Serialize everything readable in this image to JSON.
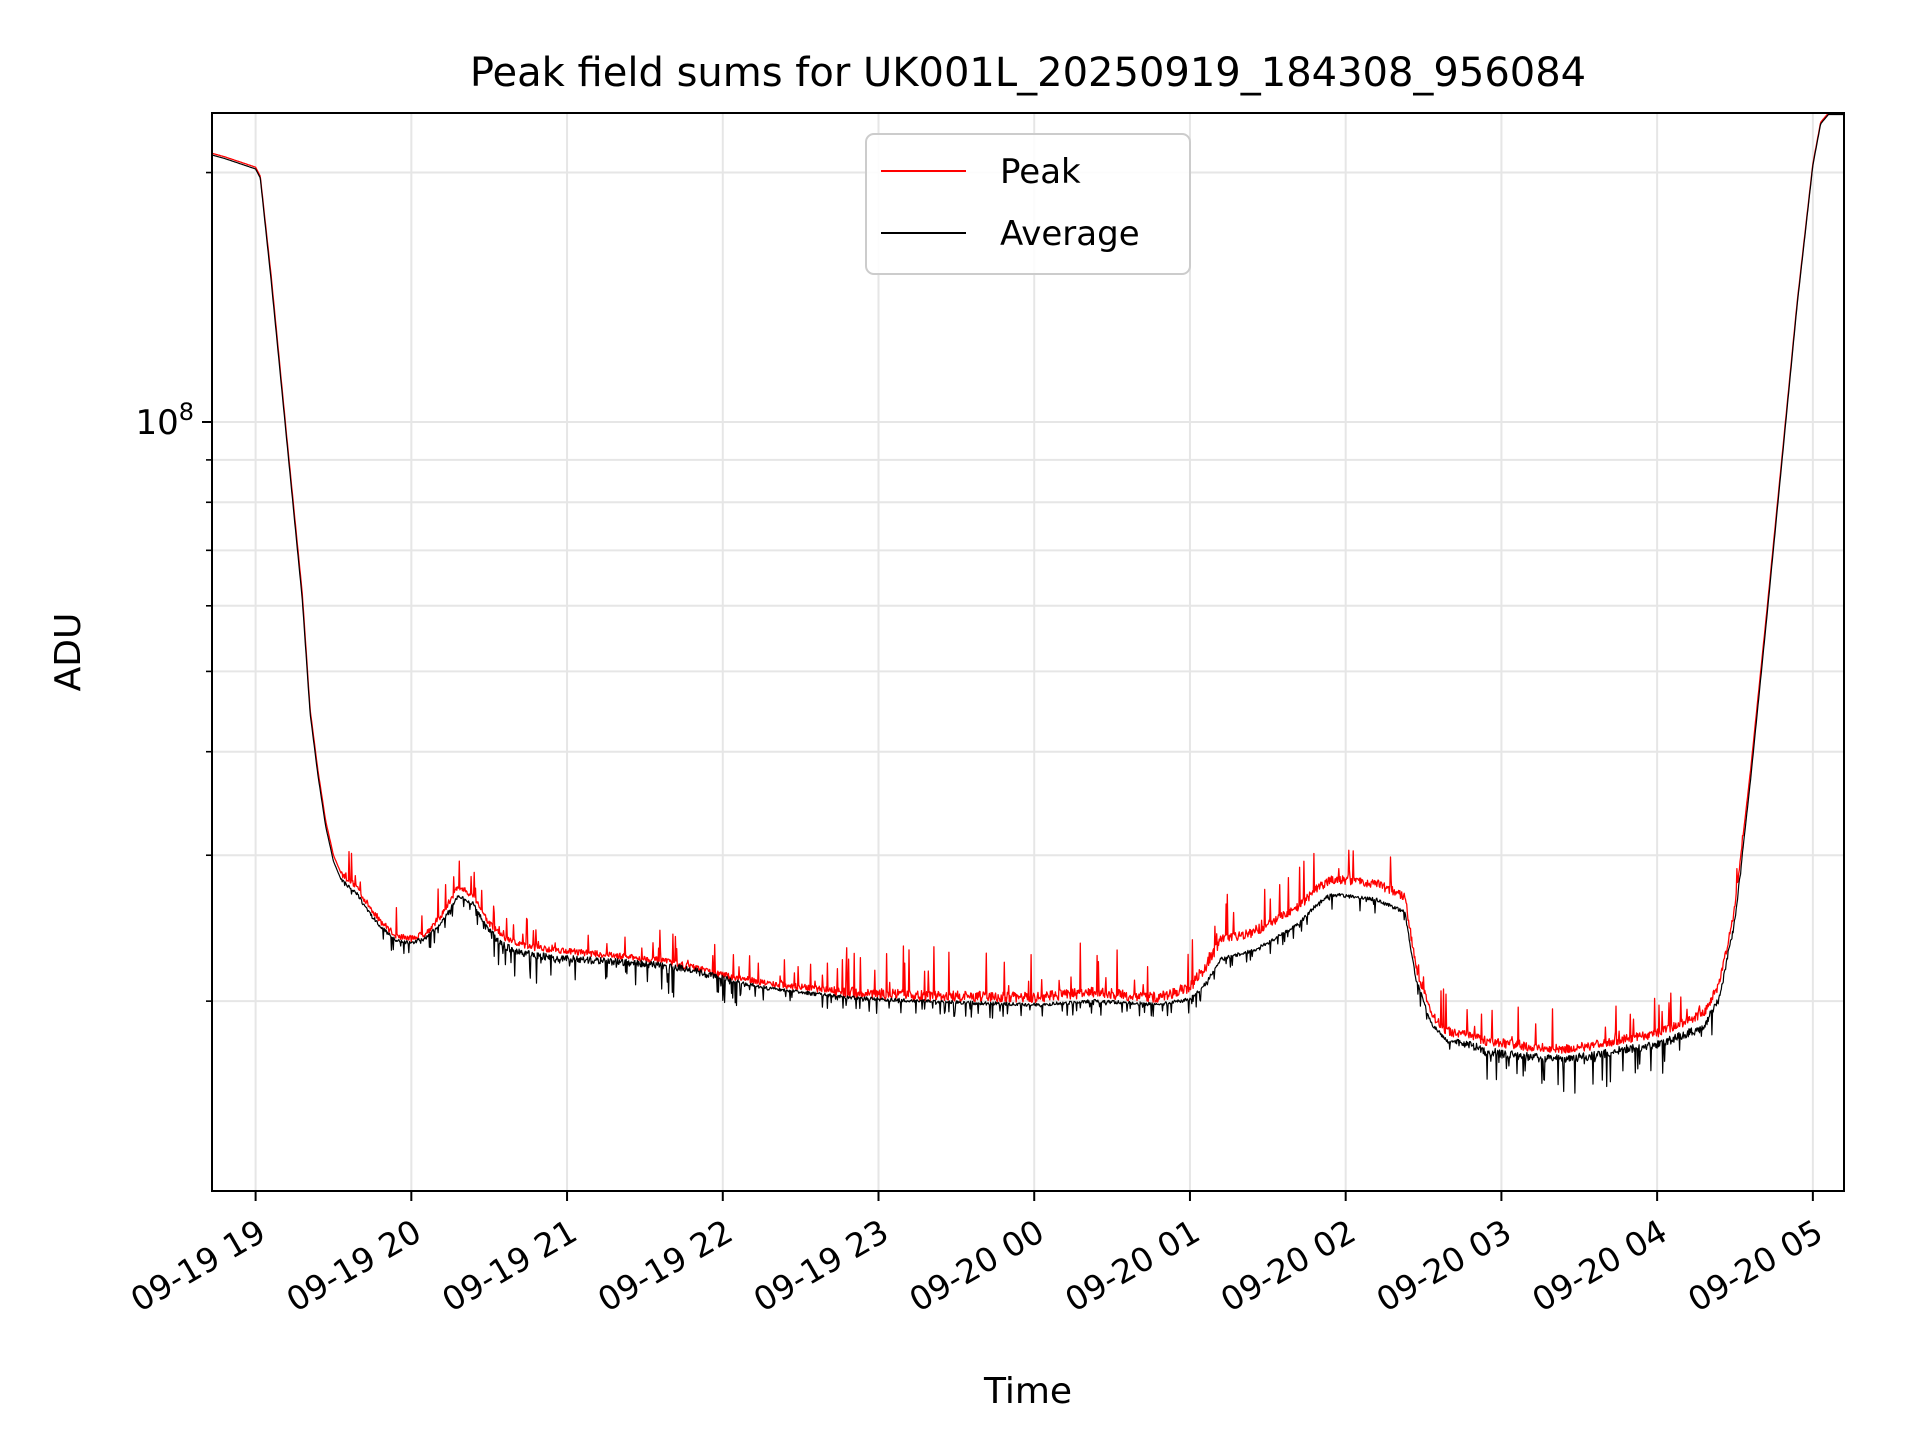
{
  "chart_data": {
    "type": "line",
    "title": "Peak field sums for UK001L_20250919_184308_956084",
    "xlabel": "Time",
    "ylabel": "ADU",
    "yscale": "log",
    "ylim": [
      11800000,
      236000000
    ],
    "xlim": [
      -0.28,
      10.2
    ],
    "x_unit": "hours after 2025-09-19 19:00",
    "grid": true,
    "grid_minor": true,
    "legend_position": "upper center",
    "xticks": [
      {
        "value": 0,
        "label": "09-19 19"
      },
      {
        "value": 1,
        "label": "09-19 20"
      },
      {
        "value": 2,
        "label": "09-19 21"
      },
      {
        "value": 3,
        "label": "09-19 22"
      },
      {
        "value": 4,
        "label": "09-19 23"
      },
      {
        "value": 5,
        "label": "09-20 00"
      },
      {
        "value": 6,
        "label": "09-20 01"
      },
      {
        "value": 7,
        "label": "09-20 02"
      },
      {
        "value": 8,
        "label": "09-20 03"
      },
      {
        "value": 9,
        "label": "09-20 04"
      },
      {
        "value": 10,
        "label": "09-20 05"
      }
    ],
    "yticks_major": [
      {
        "value": 100000000,
        "base": "10",
        "exp": "8"
      }
    ],
    "yticks_minor": [
      20000000,
      30000000,
      40000000,
      50000000,
      60000000,
      70000000,
      80000000,
      90000000,
      200000000
    ],
    "series": [
      {
        "name": "Peak",
        "color": "#ff0000",
        "x": [
          -0.28,
          -0.2,
          -0.1,
          0.0,
          0.03,
          0.1,
          0.2,
          0.3,
          0.35,
          0.4,
          0.45,
          0.5,
          0.55,
          0.6,
          0.65,
          0.7,
          0.8,
          0.9,
          1.0,
          1.1,
          1.2,
          1.3,
          1.4,
          1.45,
          1.5,
          1.6,
          1.7,
          1.8,
          2.0,
          2.3,
          2.6,
          2.8,
          3.0,
          3.3,
          3.6,
          3.8,
          4.0,
          4.3,
          4.6,
          5.0,
          5.2,
          5.4,
          5.6,
          5.8,
          6.0,
          6.1,
          6.2,
          6.4,
          6.5,
          6.7,
          6.8,
          6.9,
          7.0,
          7.2,
          7.38,
          7.45,
          7.55,
          7.65,
          7.8,
          7.9,
          8.0,
          8.2,
          8.4,
          8.6,
          8.8,
          9.0,
          9.1,
          9.2,
          9.3,
          9.4,
          9.5,
          9.6,
          9.7,
          9.8,
          9.9,
          10.0,
          10.05,
          10.1,
          10.2
        ],
        "y": [
          211000000,
          209000000,
          206000000,
          203000000,
          198000000,
          150000000,
          96000000,
          62000000,
          45000000,
          38000000,
          33000000,
          30000000,
          28500000,
          28000000,
          27500000,
          26500000,
          25000000,
          24000000,
          23800000,
          24200000,
          25500000,
          27500000,
          26800000,
          25800000,
          24800000,
          23800000,
          23400000,
          23200000,
          23000000,
          22700000,
          22400000,
          22000000,
          21500000,
          21000000,
          20700000,
          20500000,
          20400000,
          20300000,
          20250000,
          20200000,
          20400000,
          20500000,
          20300000,
          20200000,
          20800000,
          22000000,
          23700000,
          24200000,
          24700000,
          26000000,
          27200000,
          28000000,
          28000000,
          27700000,
          26800000,
          22000000,
          19300000,
          18400000,
          18200000,
          17900000,
          17800000,
          17600000,
          17500000,
          17700000,
          18000000,
          18300000,
          18600000,
          19000000,
          19300000,
          21000000,
          26000000,
          38000000,
          58000000,
          90000000,
          140000000,
          205000000,
          230000000,
          236000000,
          236000000
        ]
      },
      {
        "name": "Average",
        "color": "#000000",
        "x": [
          -0.28,
          -0.2,
          -0.1,
          0.0,
          0.03,
          0.1,
          0.2,
          0.3,
          0.35,
          0.4,
          0.45,
          0.5,
          0.55,
          0.6,
          0.65,
          0.7,
          0.8,
          0.9,
          1.0,
          1.1,
          1.2,
          1.3,
          1.4,
          1.45,
          1.5,
          1.6,
          1.7,
          1.8,
          2.0,
          2.3,
          2.6,
          2.8,
          3.0,
          3.3,
          3.6,
          3.8,
          4.0,
          4.3,
          4.6,
          5.0,
          5.2,
          5.4,
          5.6,
          5.8,
          6.0,
          6.1,
          6.2,
          6.4,
          6.5,
          6.7,
          6.8,
          6.9,
          7.0,
          7.2,
          7.38,
          7.45,
          7.55,
          7.65,
          7.8,
          7.9,
          8.0,
          8.2,
          8.4,
          8.6,
          8.8,
          9.0,
          9.1,
          9.2,
          9.3,
          9.4,
          9.5,
          9.6,
          9.7,
          9.8,
          9.9,
          10.0,
          10.05,
          10.1,
          10.2
        ],
        "y": [
          210000000,
          208000000,
          205000000,
          202000000,
          197000000,
          148000000,
          95000000,
          61000000,
          44500000,
          37500000,
          32500000,
          29500000,
          28000000,
          27500000,
          27000000,
          26000000,
          24600000,
          23700000,
          23500000,
          23900000,
          25000000,
          26800000,
          26200000,
          25200000,
          24300000,
          23300000,
          22900000,
          22700000,
          22500000,
          22300000,
          22100000,
          21800000,
          21300000,
          20700000,
          20400000,
          20200000,
          20100000,
          20000000,
          19900000,
          19800000,
          19900000,
          20000000,
          19900000,
          19800000,
          20100000,
          21000000,
          22500000,
          23000000,
          23500000,
          24800000,
          26000000,
          26900000,
          26800000,
          26500000,
          25600000,
          21300000,
          18800000,
          17900000,
          17700000,
          17400000,
          17300000,
          17100000,
          17000000,
          17200000,
          17500000,
          17700000,
          18000000,
          18300000,
          18600000,
          20200000,
          25000000,
          37000000,
          57000000,
          89000000,
          139000000,
          204000000,
          229000000,
          235000000,
          235000000
        ]
      }
    ]
  }
}
